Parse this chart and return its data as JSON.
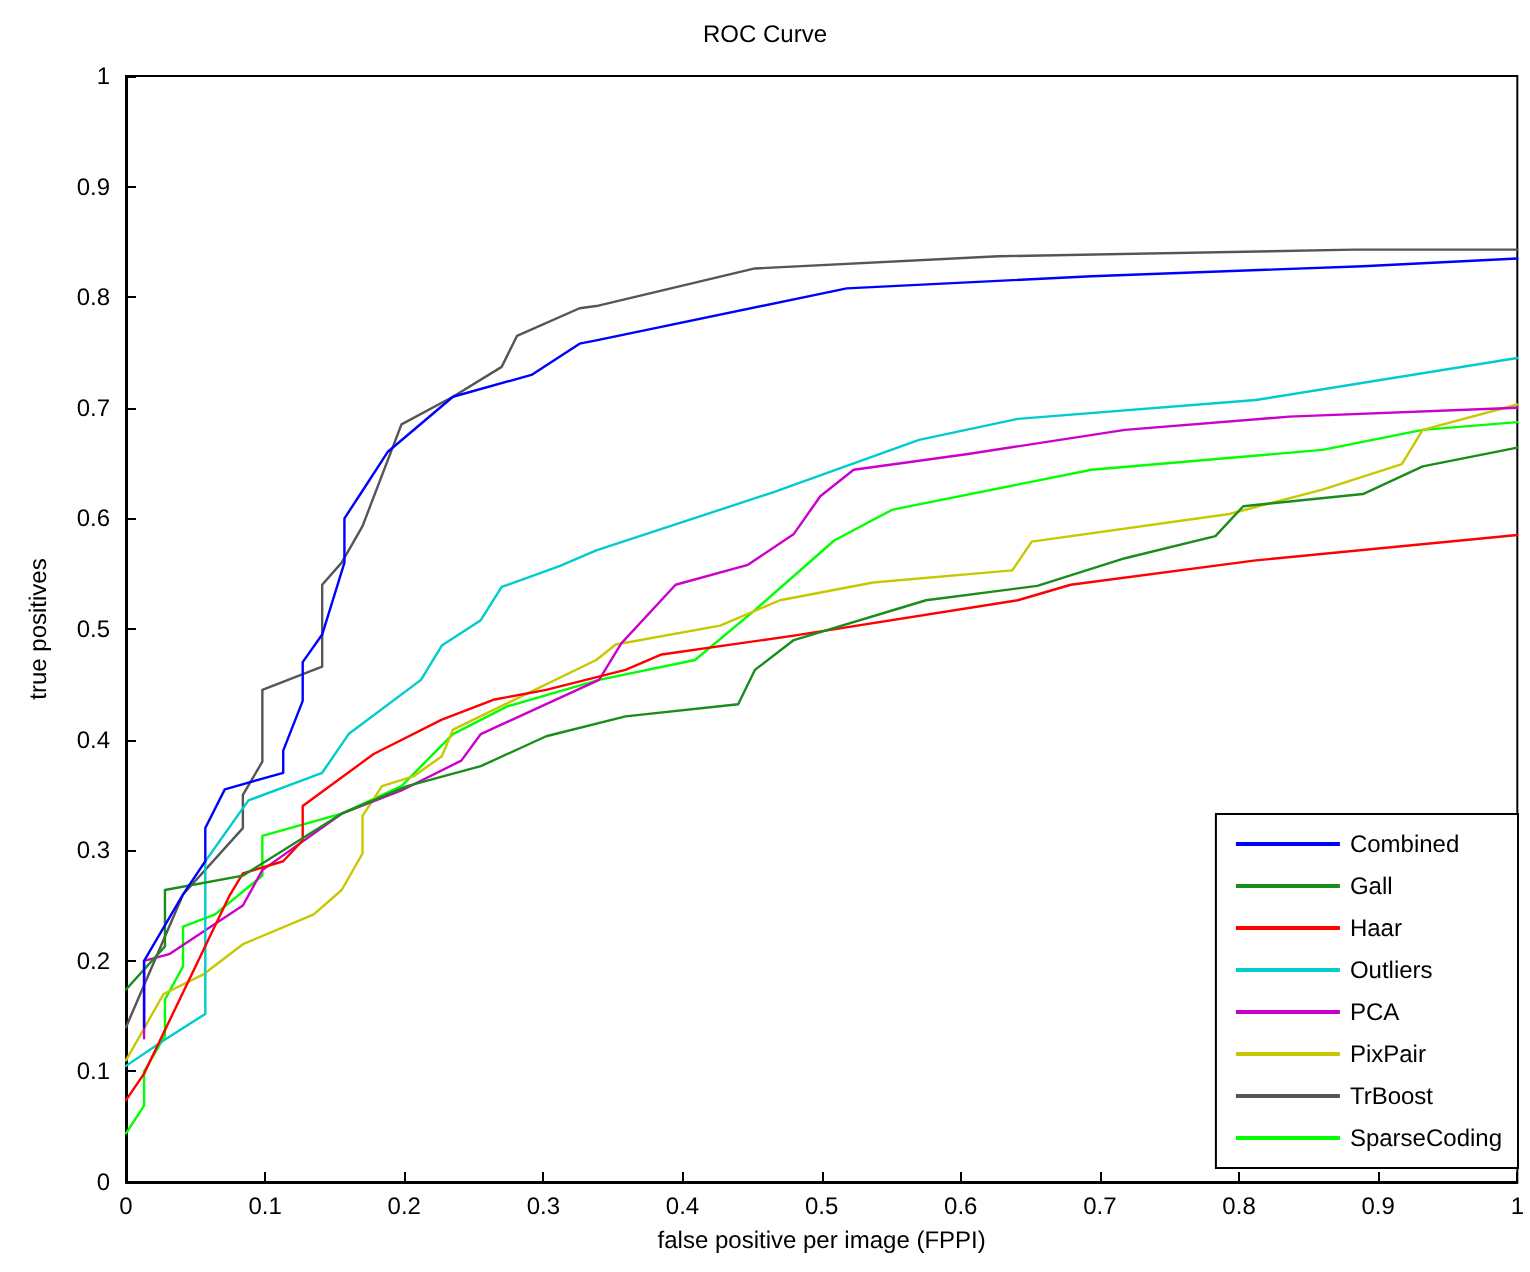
{
  "chart_data": {
    "type": "line",
    "title": "ROC Curve",
    "xlabel": "false positive per image (FPPI)",
    "ylabel": "true positives",
    "xlim": [
      0,
      1
    ],
    "ylim": [
      0,
      1
    ],
    "xticks": [
      0,
      0.1,
      0.2,
      0.3,
      0.4,
      0.5,
      0.6,
      0.7,
      0.8,
      0.9,
      1
    ],
    "yticks": [
      0,
      0.1,
      0.2,
      0.3,
      0.4,
      0.5,
      0.6,
      0.7,
      0.8,
      0.9,
      1
    ],
    "grid": false,
    "legend": "bottom right",
    "marker": "none",
    "line_style": "solid",
    "series": [
      {
        "name": "Combined",
        "color": "#0000ff",
        "x": [
          0.013,
          0.013,
          0.041,
          0.057,
          0.057,
          0.071,
          0.113,
          0.113,
          0.127,
          0.127,
          0.141,
          0.157,
          0.157,
          0.17,
          0.188,
          0.235,
          0.292,
          0.326,
          0.338,
          0.518,
          0.694,
          0.889,
          1
        ],
        "values": [
          0.14,
          0.2,
          0.26,
          0.29,
          0.32,
          0.355,
          0.37,
          0.39,
          0.435,
          0.47,
          0.495,
          0.56,
          0.6,
          0.625,
          0.66,
          0.71,
          0.73,
          0.758,
          0.761,
          0.808,
          0.819,
          0.828,
          0.835
        ]
      },
      {
        "name": "Gall",
        "color": "#1a8c1a",
        "x": [
          0,
          0.028,
          0.028,
          0.084,
          0.155,
          0.202,
          0.255,
          0.302,
          0.359,
          0.44,
          0.452,
          0.48,
          0.575,
          0.655,
          0.718,
          0.783,
          0.803,
          0.889,
          0.932,
          1
        ],
        "values": [
          0.174,
          0.213,
          0.264,
          0.277,
          0.333,
          0.358,
          0.376,
          0.403,
          0.421,
          0.432,
          0.463,
          0.49,
          0.526,
          0.539,
          0.564,
          0.584,
          0.611,
          0.622,
          0.647,
          0.664
        ]
      },
      {
        "name": "Haar",
        "color": "#ff0000",
        "x": [
          0,
          0.013,
          0.074,
          0.084,
          0.113,
          0.127,
          0.127,
          0.178,
          0.227,
          0.264,
          0.302,
          0.359,
          0.385,
          0.48,
          0.641,
          0.679,
          0.812,
          1
        ],
        "values": [
          0.074,
          0.098,
          0.258,
          0.279,
          0.29,
          0.309,
          0.34,
          0.387,
          0.418,
          0.436,
          0.445,
          0.463,
          0.477,
          0.494,
          0.526,
          0.54,
          0.562,
          0.585
        ]
      },
      {
        "name": "Outliers",
        "color": "#00cccc",
        "x": [
          0,
          0.027,
          0.057,
          0.057,
          0.088,
          0.141,
          0.16,
          0.212,
          0.227,
          0.255,
          0.27,
          0.312,
          0.338,
          0.466,
          0.57,
          0.641,
          0.812,
          1
        ],
        "values": [
          0.105,
          0.128,
          0.152,
          0.29,
          0.345,
          0.37,
          0.405,
          0.454,
          0.485,
          0.508,
          0.538,
          0.557,
          0.571,
          0.624,
          0.671,
          0.69,
          0.707,
          0.745
        ]
      },
      {
        "name": "PCA",
        "color": "#cc00cc",
        "x": [
          0.013,
          0.013,
          0.031,
          0.084,
          0.098,
          0.155,
          0.198,
          0.241,
          0.255,
          0.34,
          0.356,
          0.395,
          0.447,
          0.48,
          0.499,
          0.523,
          0.604,
          0.718,
          0.836,
          1
        ],
        "values": [
          0.13,
          0.2,
          0.206,
          0.25,
          0.282,
          0.333,
          0.354,
          0.381,
          0.405,
          0.454,
          0.487,
          0.54,
          0.558,
          0.586,
          0.62,
          0.644,
          0.658,
          0.68,
          0.692,
          0.7
        ]
      },
      {
        "name": "PixPair",
        "color": "#c8c800",
        "x": [
          0,
          0.027,
          0.056,
          0.084,
          0.135,
          0.155,
          0.17,
          0.17,
          0.184,
          0.207,
          0.227,
          0.235,
          0.338,
          0.352,
          0.427,
          0.47,
          0.537,
          0.637,
          0.651,
          0.793,
          0.86,
          0.917,
          0.932,
          1
        ],
        "values": [
          0.11,
          0.17,
          0.188,
          0.215,
          0.242,
          0.264,
          0.297,
          0.331,
          0.358,
          0.367,
          0.385,
          0.409,
          0.472,
          0.486,
          0.503,
          0.526,
          0.542,
          0.553,
          0.579,
          0.604,
          0.626,
          0.649,
          0.68,
          0.703
        ]
      },
      {
        "name": "TrBoost",
        "color": "#555555",
        "x": [
          0,
          0.041,
          0.084,
          0.084,
          0.098,
          0.098,
          0.141,
          0.141,
          0.155,
          0.17,
          0.198,
          0.235,
          0.27,
          0.281,
          0.326,
          0.338,
          0.452,
          0.627,
          0.883,
          1
        ],
        "values": [
          0.14,
          0.26,
          0.32,
          0.35,
          0.38,
          0.445,
          0.466,
          0.54,
          0.56,
          0.593,
          0.685,
          0.71,
          0.737,
          0.765,
          0.79,
          0.792,
          0.826,
          0.837,
          0.843,
          0.843
        ]
      },
      {
        "name": "SparseCoding",
        "color": "#00ff00",
        "x": [
          0,
          0.013,
          0.013,
          0.028,
          0.028,
          0.041,
          0.041,
          0.064,
          0.098,
          0.098,
          0.155,
          0.198,
          0.235,
          0.274,
          0.34,
          0.409,
          0.452,
          0.509,
          0.551,
          0.694,
          0.86,
          0.932,
          1
        ],
        "values": [
          0.044,
          0.069,
          0.1,
          0.132,
          0.165,
          0.195,
          0.231,
          0.242,
          0.277,
          0.313,
          0.333,
          0.358,
          0.405,
          0.43,
          0.454,
          0.472,
          0.517,
          0.58,
          0.608,
          0.644,
          0.662,
          0.68,
          0.687
        ]
      }
    ]
  }
}
